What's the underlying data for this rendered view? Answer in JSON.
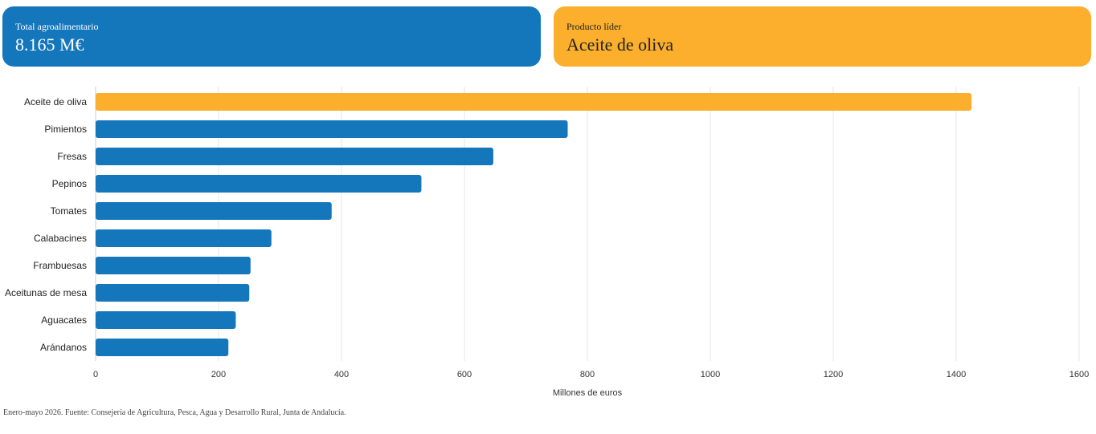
{
  "cards": {
    "total": {
      "label": "Total agroalimentario",
      "value": "8.165 M€",
      "color": "#1476bb"
    },
    "leader": {
      "label": "Producto líder",
      "value": "Aceite de oliva",
      "color": "#fbaf2d"
    }
  },
  "chart_data": {
    "type": "bar",
    "orientation": "horizontal",
    "categories": [
      "Aceite de oliva",
      "Pimientos",
      "Fresas",
      "Pepinos",
      "Tomates",
      "Calabacines",
      "Frambuesas",
      "Aceitunas de mesa",
      "Aguacates",
      "Arándanos"
    ],
    "values": [
      1425,
      768,
      647,
      530,
      384,
      286,
      252,
      250,
      228,
      216
    ],
    "xlabel": "Millones de euros",
    "xlim": [
      0,
      1600
    ],
    "xticks": [
      0,
      200,
      400,
      600,
      800,
      1000,
      1200,
      1400,
      1600
    ],
    "grid": true,
    "highlight_color": "#fbaf2d",
    "bar_color": "#1476bb"
  },
  "footnote": "Enero-mayo 2026. Fuente: Consejería de Agricultura, Pesca, Agua y Desarrollo Rural, Junta de Andalucía."
}
